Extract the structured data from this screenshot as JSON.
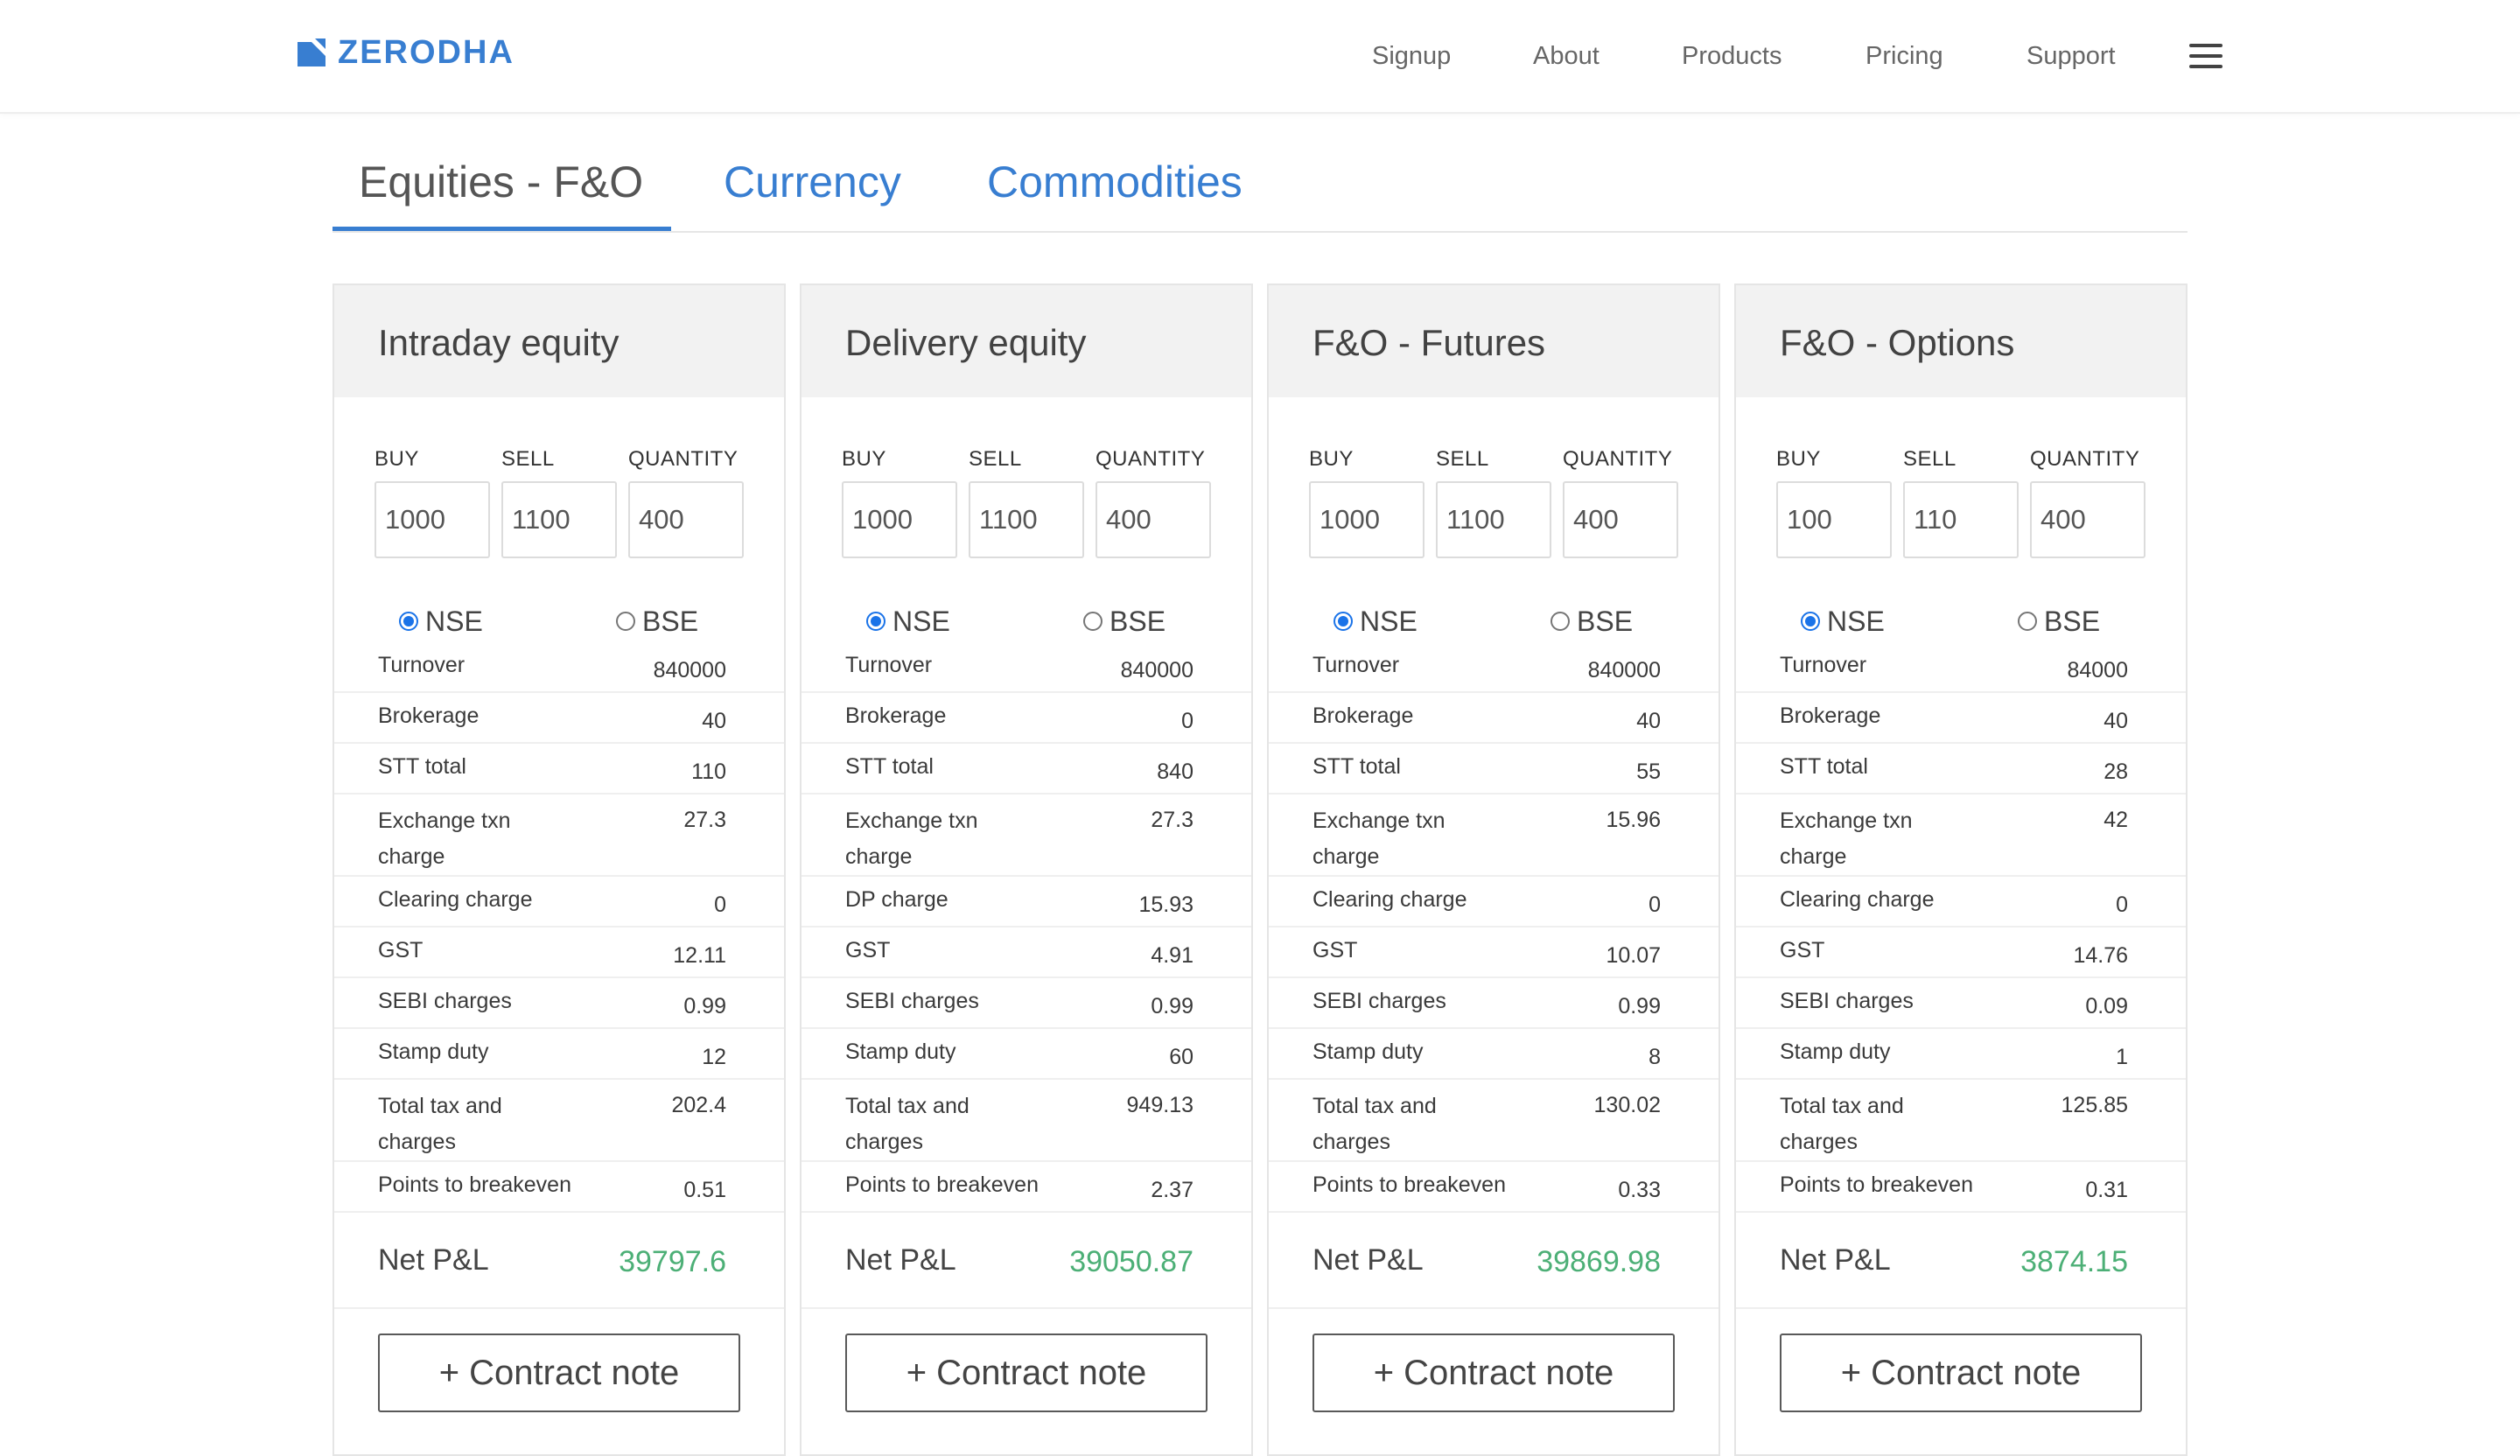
{
  "brand": {
    "name": "ZERODHA",
    "color": "#387ed1"
  },
  "nav": {
    "items": [
      "Signup",
      "About",
      "Products",
      "Pricing",
      "Support"
    ],
    "menu_icon": "hamburger-menu-icon"
  },
  "tabs": [
    {
      "label": "Equities - F&O",
      "active": true
    },
    {
      "label": "Currency",
      "active": false
    },
    {
      "label": "Commodities",
      "active": false
    }
  ],
  "field_labels": {
    "buy": "BUY",
    "sell": "SELL",
    "quantity": "QUANTITY"
  },
  "exchanges": {
    "nse": "NSE",
    "bse": "BSE"
  },
  "net_pl_label": "Net P&L",
  "contract_note_label": "+ Contract note",
  "colors": {
    "accent": "#387ed1",
    "profit": "#4caf76",
    "radio": "#1a73e8"
  },
  "cards": [
    {
      "title": "Intraday equity",
      "buy": "1000",
      "sell": "1100",
      "quantity": "400",
      "selected_exchange": "NSE",
      "rows": [
        {
          "label": "Turnover",
          "value": "840000"
        },
        {
          "label": "Brokerage",
          "value": "40"
        },
        {
          "label": "STT total",
          "value": "110"
        },
        {
          "label": "Exchange txn charge",
          "value": "27.3"
        },
        {
          "label": "Clearing charge",
          "value": "0"
        },
        {
          "label": "GST",
          "value": "12.11"
        },
        {
          "label": "SEBI charges",
          "value": "0.99"
        },
        {
          "label": "Stamp duty",
          "value": "12"
        },
        {
          "label": "Total tax and charges",
          "value": "202.4"
        },
        {
          "label": "Points to breakeven",
          "value": "0.51"
        }
      ],
      "net_pl": "39797.6"
    },
    {
      "title": "Delivery equity",
      "buy": "1000",
      "sell": "1100",
      "quantity": "400",
      "selected_exchange": "NSE",
      "rows": [
        {
          "label": "Turnover",
          "value": "840000"
        },
        {
          "label": "Brokerage",
          "value": "0"
        },
        {
          "label": "STT total",
          "value": "840"
        },
        {
          "label": "Exchange txn charge",
          "value": "27.3"
        },
        {
          "label": "DP charge",
          "value": "15.93"
        },
        {
          "label": "GST",
          "value": "4.91"
        },
        {
          "label": "SEBI charges",
          "value": "0.99"
        },
        {
          "label": "Stamp duty",
          "value": "60"
        },
        {
          "label": "Total tax and charges",
          "value": "949.13"
        },
        {
          "label": "Points to breakeven",
          "value": "2.37"
        }
      ],
      "net_pl": "39050.87"
    },
    {
      "title": "F&O - Futures",
      "buy": "1000",
      "sell": "1100",
      "quantity": "400",
      "selected_exchange": "NSE",
      "rows": [
        {
          "label": "Turnover",
          "value": "840000"
        },
        {
          "label": "Brokerage",
          "value": "40"
        },
        {
          "label": "STT total",
          "value": "55"
        },
        {
          "label": "Exchange txn charge",
          "value": "15.96"
        },
        {
          "label": "Clearing charge",
          "value": "0"
        },
        {
          "label": "GST",
          "value": "10.07"
        },
        {
          "label": "SEBI charges",
          "value": "0.99"
        },
        {
          "label": "Stamp duty",
          "value": "8"
        },
        {
          "label": "Total tax and charges",
          "value": "130.02"
        },
        {
          "label": "Points to breakeven",
          "value": "0.33"
        }
      ],
      "net_pl": "39869.98"
    },
    {
      "title": "F&O - Options",
      "buy": "100",
      "sell": "110",
      "quantity": "400",
      "selected_exchange": "NSE",
      "rows": [
        {
          "label": "Turnover",
          "value": "84000"
        },
        {
          "label": "Brokerage",
          "value": "40"
        },
        {
          "label": "STT total",
          "value": "28"
        },
        {
          "label": "Exchange txn charge",
          "value": "42"
        },
        {
          "label": "Clearing charge",
          "value": "0"
        },
        {
          "label": "GST",
          "value": "14.76"
        },
        {
          "label": "SEBI charges",
          "value": "0.09"
        },
        {
          "label": "Stamp duty",
          "value": "1"
        },
        {
          "label": "Total tax and charges",
          "value": "125.85"
        },
        {
          "label": "Points to breakeven",
          "value": "0.31"
        }
      ],
      "net_pl": "3874.15"
    }
  ]
}
